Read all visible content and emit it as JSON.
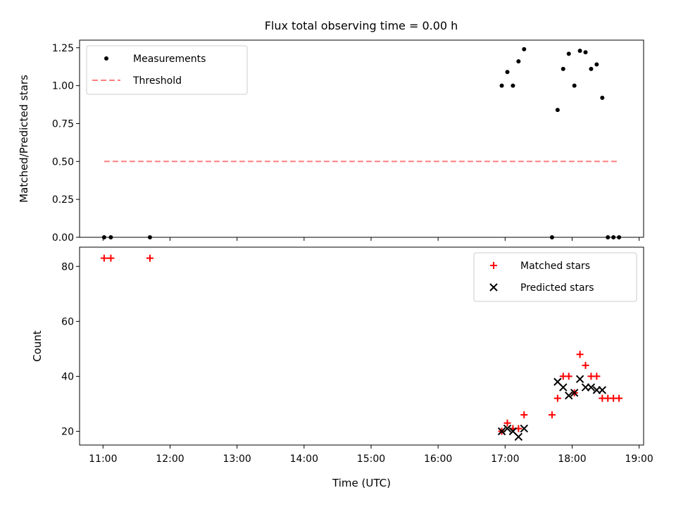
{
  "title": "Flux total observing time = 0.00 h",
  "chart_data": [
    {
      "type": "scatter",
      "ylabel": "Matched/Predicted stars",
      "xlim": [
        "10:39",
        "19:04"
      ],
      "ylim": [
        0,
        1.3
      ],
      "yticks": [
        {
          "v": 0.0,
          "label": "0.00"
        },
        {
          "v": 0.25,
          "label": "0.25"
        },
        {
          "v": 0.5,
          "label": "0.50"
        },
        {
          "v": 0.75,
          "label": "0.75"
        },
        {
          "v": 1.0,
          "label": "1.00"
        },
        {
          "v": 1.25,
          "label": "1.25"
        }
      ],
      "legend_position": "top-left",
      "series": [
        {
          "name": "Measurements",
          "kind": "points",
          "color": "#000000",
          "points": [
            [
              "11:01",
              0.0
            ],
            [
              "11:07",
              0.0
            ],
            [
              "11:42",
              0.0
            ],
            [
              "16:57",
              1.0
            ],
            [
              "17:02",
              1.09
            ],
            [
              "17:07",
              1.0
            ],
            [
              "17:12",
              1.16
            ],
            [
              "17:17",
              1.24
            ],
            [
              "17:42",
              0.0
            ],
            [
              "17:47",
              0.84
            ],
            [
              "17:52",
              1.11
            ],
            [
              "17:57",
              1.21
            ],
            [
              "18:02",
              1.0
            ],
            [
              "18:07",
              1.23
            ],
            [
              "18:12",
              1.22
            ],
            [
              "18:17",
              1.11
            ],
            [
              "18:22",
              1.14
            ],
            [
              "18:27",
              0.92
            ],
            [
              "18:32",
              0.0
            ],
            [
              "18:37",
              0.0
            ],
            [
              "18:42",
              0.0
            ]
          ]
        },
        {
          "name": "Threshold",
          "kind": "dashed-line",
          "color": "#ff7f7f",
          "points": [
            [
              "11:01",
              0.5
            ],
            [
              "18:40",
              0.5
            ]
          ]
        }
      ]
    },
    {
      "type": "scatter",
      "ylabel": "Count",
      "xlabel": "Time (UTC)",
      "xlim": [
        "10:39",
        "19:04"
      ],
      "ylim": [
        15,
        87
      ],
      "yticks": [
        {
          "v": 20,
          "label": "20"
        },
        {
          "v": 40,
          "label": "40"
        },
        {
          "v": 60,
          "label": "60"
        },
        {
          "v": 80,
          "label": "80"
        }
      ],
      "xticks": [
        {
          "v": "11:00",
          "label": "11:00"
        },
        {
          "v": "12:00",
          "label": "12:00"
        },
        {
          "v": "13:00",
          "label": "13:00"
        },
        {
          "v": "14:00",
          "label": "14:00"
        },
        {
          "v": "15:00",
          "label": "15:00"
        },
        {
          "v": "16:00",
          "label": "16:00"
        },
        {
          "v": "17:00",
          "label": "17:00"
        },
        {
          "v": "18:00",
          "label": "18:00"
        },
        {
          "v": "19:00",
          "label": "19:00"
        }
      ],
      "legend_position": "top-right",
      "series": [
        {
          "name": "Matched stars",
          "marker": "plus",
          "color": "#ff0000",
          "points": [
            [
              "11:01",
              83
            ],
            [
              "11:07",
              83
            ],
            [
              "11:42",
              83
            ],
            [
              "16:57",
              20
            ],
            [
              "17:02",
              23
            ],
            [
              "17:07",
              21
            ],
            [
              "17:12",
              21
            ],
            [
              "17:17",
              26
            ],
            [
              "17:42",
              26
            ],
            [
              "17:47",
              32
            ],
            [
              "17:52",
              40
            ],
            [
              "17:57",
              40
            ],
            [
              "18:02",
              34
            ],
            [
              "18:07",
              48
            ],
            [
              "18:12",
              44
            ],
            [
              "18:17",
              40
            ],
            [
              "18:22",
              40
            ],
            [
              "18:27",
              32
            ],
            [
              "18:32",
              32
            ],
            [
              "18:37",
              32
            ],
            [
              "18:42",
              32
            ]
          ]
        },
        {
          "name": "Predicted stars",
          "marker": "x",
          "color": "#000000",
          "points": [
            [
              "16:57",
              20
            ],
            [
              "17:02",
              21
            ],
            [
              "17:07",
              20
            ],
            [
              "17:12",
              18
            ],
            [
              "17:17",
              21
            ],
            [
              "17:47",
              38
            ],
            [
              "17:52",
              36
            ],
            [
              "17:57",
              33
            ],
            [
              "18:02",
              34
            ],
            [
              "18:07",
              39
            ],
            [
              "18:12",
              36
            ],
            [
              "18:17",
              36
            ],
            [
              "18:22",
              35
            ],
            [
              "18:27",
              35
            ]
          ]
        }
      ]
    }
  ]
}
